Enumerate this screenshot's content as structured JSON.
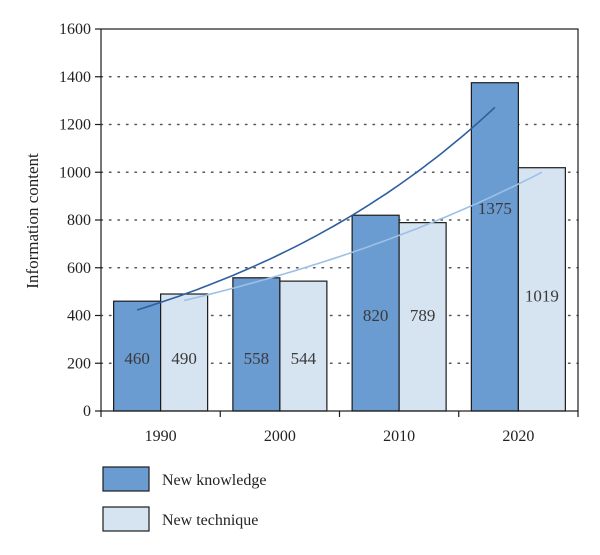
{
  "chart_data": {
    "type": "bar",
    "title": "",
    "xlabel": "",
    "ylabel": "Information content",
    "ylim": [
      0,
      1600
    ],
    "yticks": [
      0,
      200,
      400,
      600,
      800,
      1000,
      1200,
      1400,
      1600
    ],
    "grid": "horizontal dotted",
    "legend_position": "bottom",
    "categories": [
      "1990",
      "2000",
      "2010",
      "2020"
    ],
    "series": [
      {
        "name": "New knowledge",
        "values": [
          460,
          558,
          820,
          1375
        ],
        "color": "#6a9bd1",
        "trend_color": "#2f5f9e"
      },
      {
        "name": "New technique",
        "values": [
          490,
          544,
          789,
          1019
        ],
        "color": "#d6e3f1",
        "trend_color": "#9cc0e6"
      }
    ],
    "data_labels": [
      [
        "460",
        "558",
        "820",
        "1375"
      ],
      [
        "490",
        "544",
        "789",
        "1019"
      ]
    ],
    "trend_lines": "exponential trend curve per series"
  }
}
